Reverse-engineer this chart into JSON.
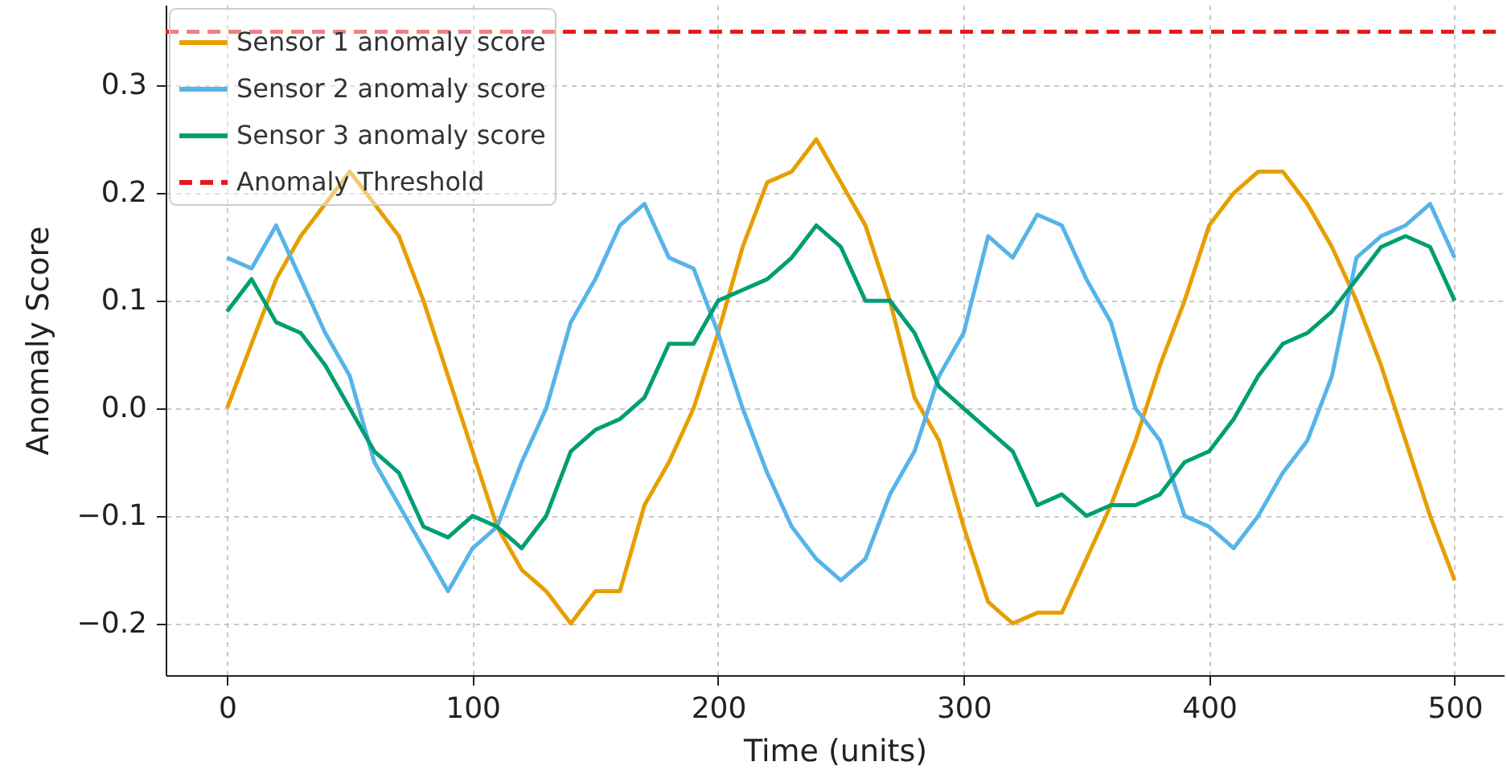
{
  "chart_data": {
    "type": "line",
    "xlabel": "Time (units)",
    "ylabel": "Anomaly Score",
    "x": [
      0,
      10,
      20,
      30,
      40,
      50,
      60,
      70,
      80,
      90,
      100,
      110,
      120,
      130,
      140,
      150,
      160,
      170,
      180,
      190,
      200,
      210,
      220,
      230,
      240,
      250,
      260,
      270,
      280,
      290,
      300,
      310,
      320,
      330,
      340,
      350,
      360,
      370,
      380,
      390,
      400,
      410,
      420,
      430,
      440,
      450,
      460,
      470,
      480,
      490,
      500
    ],
    "series": [
      {
        "name": "Sensor 1 anomaly score",
        "color": "#e69f00",
        "values": [
          0.0,
          0.06,
          0.12,
          0.16,
          0.19,
          0.22,
          0.19,
          0.16,
          0.1,
          0.03,
          -0.04,
          -0.11,
          -0.15,
          -0.17,
          -0.2,
          -0.17,
          -0.17,
          -0.09,
          -0.05,
          0.0,
          0.07,
          0.15,
          0.21,
          0.22,
          0.25,
          0.21,
          0.17,
          0.1,
          0.01,
          -0.03,
          -0.11,
          -0.18,
          -0.2,
          -0.19,
          -0.19,
          -0.14,
          -0.09,
          -0.03,
          0.04,
          0.1,
          0.17,
          0.2,
          0.22,
          0.22,
          0.19,
          0.15,
          0.1,
          0.04,
          -0.03,
          -0.1,
          -0.16
        ]
      },
      {
        "name": "Sensor 2 anomaly score",
        "color": "#56b4e9",
        "values": [
          0.14,
          0.13,
          0.17,
          0.12,
          0.07,
          0.03,
          -0.05,
          -0.09,
          -0.13,
          -0.17,
          -0.13,
          -0.11,
          -0.05,
          0.0,
          0.08,
          0.12,
          0.17,
          0.19,
          0.14,
          0.13,
          0.07,
          0.0,
          -0.06,
          -0.11,
          -0.14,
          -0.16,
          -0.14,
          -0.08,
          -0.04,
          0.03,
          0.07,
          0.16,
          0.14,
          0.18,
          0.17,
          0.12,
          0.08,
          0.0,
          -0.03,
          -0.1,
          -0.11,
          -0.13,
          -0.1,
          -0.06,
          -0.03,
          0.03,
          0.14,
          0.16,
          0.17,
          0.19,
          0.14
        ]
      },
      {
        "name": "Sensor 3 anomaly score",
        "color": "#009e73",
        "values": [
          0.09,
          0.12,
          0.08,
          0.07,
          0.04,
          0.0,
          -0.04,
          -0.06,
          -0.11,
          -0.12,
          -0.1,
          -0.11,
          -0.13,
          -0.1,
          -0.04,
          -0.02,
          -0.01,
          0.01,
          0.06,
          0.06,
          0.1,
          0.11,
          0.12,
          0.14,
          0.17,
          0.15,
          0.1,
          0.1,
          0.07,
          0.02,
          0.0,
          -0.02,
          -0.04,
          -0.09,
          -0.08,
          -0.1,
          -0.09,
          -0.09,
          -0.08,
          -0.05,
          -0.04,
          -0.01,
          0.03,
          0.06,
          0.07,
          0.09,
          0.12,
          0.15,
          0.16,
          0.15,
          0.1
        ]
      }
    ],
    "ref_lines": [
      {
        "axis": "y",
        "value": 0.35,
        "label": "Anomaly Threshold",
        "color": "#e41a1c",
        "line_style": "dashed"
      }
    ],
    "xlim": [
      -25,
      520
    ],
    "ylim": [
      -0.248,
      0.375
    ],
    "xticks": [
      0,
      100,
      200,
      300,
      400,
      500
    ],
    "yticks": [
      {
        "value": -0.2,
        "label": "−0.2"
      },
      {
        "value": -0.1,
        "label": "−0.1"
      },
      {
        "value": 0,
        "label": "0.0"
      },
      0.1,
      0.2,
      0.3
    ],
    "grid": true,
    "legend": "top left",
    "line_style": "solid"
  }
}
